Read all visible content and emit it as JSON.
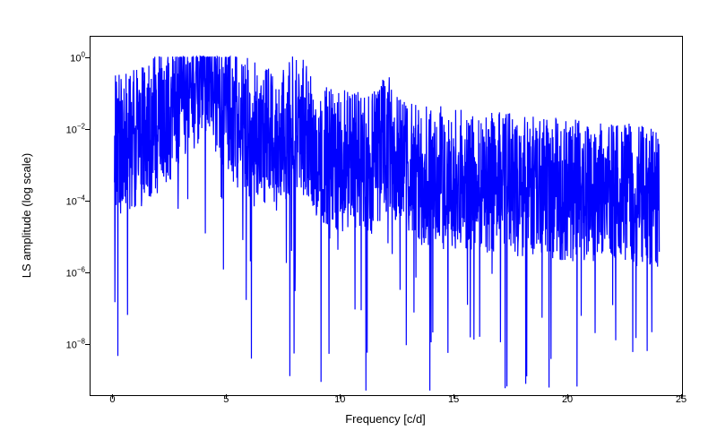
{
  "chart": {
    "type": "line",
    "xlabel": "Frequency [c/d]",
    "ylabel": "LS amplitude (log scale)",
    "xlim": [
      -1,
      25
    ],
    "ylim_log10": [
      -9.4,
      0.6
    ],
    "xticks": [
      0,
      5,
      10,
      15,
      20,
      25
    ],
    "yticks_log10": [
      -8,
      -6,
      -4,
      -2,
      0
    ],
    "ytick_labels": [
      "10⁻⁸",
      "10⁻⁶",
      "10⁻⁴",
      "10⁻²",
      "10⁰"
    ],
    "line_color": "#0000ff",
    "line_width": 1.2,
    "background_color": "#ffffff",
    "border_color": "#000000",
    "label_fontsize": 13,
    "tick_fontsize": 11,
    "peaks": [
      {
        "freq": 4.0,
        "log10_amp": 0.0
      },
      {
        "freq": 8.0,
        "log10_amp": -1.6
      },
      {
        "freq": 12.0,
        "log10_amp": -2.4
      },
      {
        "freq": 16.0,
        "log10_amp": -3.5
      },
      {
        "freq": 6.3,
        "log10_amp": -3.1
      }
    ],
    "noise_floor_log10": -5.5,
    "noise_spread_log10": 2.5,
    "data_xmin": 0.05,
    "data_xmax": 24.0,
    "n_points": 2200,
    "seed": 42
  }
}
